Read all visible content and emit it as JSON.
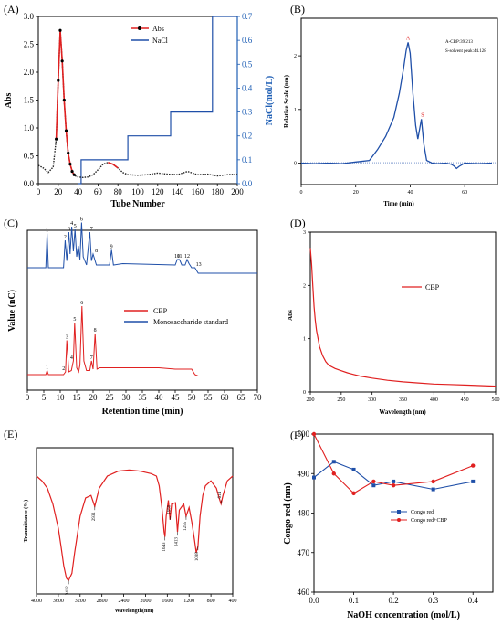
{
  "panels": {
    "A": {
      "label": "(A)"
    },
    "B": {
      "label": "(B)"
    },
    "C": {
      "label": "(C)"
    },
    "D": {
      "label": "(D)"
    },
    "E": {
      "label": "(E)"
    },
    "F": {
      "label": "(F)"
    }
  },
  "colors": {
    "red": "#e02020",
    "blue": "#1f4fa8",
    "axis_blue": "#1f5fb5"
  },
  "chart_data": [
    {
      "id": "A",
      "type": "line",
      "xlabel": "Tube Number",
      "ylabel": "Abs",
      "ylabel_right": "NaCl(mol/L)",
      "xlim": [
        0,
        200
      ],
      "ylim": [
        0,
        3.0
      ],
      "ylim_right": [
        0,
        0.7
      ],
      "xticks": [
        "0",
        "20",
        "40",
        "60",
        "80",
        "100",
        "120",
        "140",
        "160",
        "180",
        "200"
      ],
      "yticks": [
        "0.0",
        "0.5",
        "1.0",
        "1.5",
        "2.0",
        "2.5",
        "3.0"
      ],
      "yticks_right": [
        "0.0",
        "0.1",
        "0.2",
        "0.3",
        "0.4",
        "0.5",
        "0.6",
        "0.7"
      ],
      "series": [
        {
          "name": "Abs",
          "axis": "left",
          "x": [
            0,
            5,
            10,
            15,
            18,
            20,
            22,
            24,
            26,
            28,
            30,
            32,
            34,
            36,
            38,
            40,
            45,
            50,
            55,
            60,
            65,
            70,
            75,
            80,
            85,
            90,
            100,
            110,
            120,
            130,
            140,
            150,
            160,
            170,
            180,
            190,
            200
          ],
          "y": [
            0.33,
            0.28,
            0.2,
            0.3,
            0.8,
            1.85,
            2.75,
            2.2,
            1.5,
            0.95,
            0.55,
            0.35,
            0.22,
            0.16,
            0.13,
            0.12,
            0.11,
            0.12,
            0.16,
            0.25,
            0.35,
            0.38,
            0.35,
            0.28,
            0.2,
            0.16,
            0.15,
            0.16,
            0.19,
            0.17,
            0.16,
            0.22,
            0.16,
            0.17,
            0.14,
            0.16,
            0.17
          ]
        },
        {
          "name": "NaCl",
          "axis": "right",
          "x": [
            40,
            43,
            43,
            90,
            90,
            133,
            133,
            175,
            175,
            200
          ],
          "y": [
            0,
            0,
            0.1,
            0.1,
            0.2,
            0.2,
            0.3,
            0.3,
            0.7,
            0.7
          ]
        }
      ]
    },
    {
      "id": "B",
      "type": "line",
      "xlabel": "Time (min)",
      "ylabel": "Relative Scale (nm)",
      "xlim": [
        0,
        72
      ],
      "ylim": [
        -0.4,
        2.7
      ],
      "xticks": [
        "0",
        "20",
        "40",
        "60"
      ],
      "yticks": [
        "0",
        "1",
        "2"
      ],
      "annotations": [
        "A-CBP:39.213",
        "S-solvent peak:44.128"
      ],
      "peak_labels": [
        "A",
        "S"
      ],
      "series": [
        {
          "name": "",
          "x": [
            0,
            5,
            10,
            15,
            20,
            25,
            28,
            31,
            34,
            36,
            37.5,
            38.5,
            39.2,
            40,
            41,
            42,
            42.8,
            43.5,
            44.1,
            45,
            46,
            48,
            50,
            53,
            55,
            56,
            57,
            58,
            60,
            65,
            70
          ],
          "y": [
            0.0,
            -0.01,
            0.0,
            -0.01,
            0.02,
            0.05,
            0.25,
            0.5,
            0.85,
            1.3,
            1.75,
            2.1,
            2.25,
            2.05,
            1.3,
            0.7,
            0.45,
            0.65,
            0.82,
            0.35,
            0.05,
            0.0,
            -0.01,
            0.0,
            -0.02,
            -0.05,
            -0.1,
            -0.06,
            0.0,
            -0.01,
            0.0
          ]
        }
      ]
    },
    {
      "id": "C",
      "type": "line",
      "xlabel": "Retention time (min)",
      "ylabel": "Value (nC)",
      "xlim": [
        0,
        70
      ],
      "xticks": [
        "0",
        "5",
        "10",
        "15",
        "20",
        "25",
        "30",
        "35",
        "40",
        "45",
        "50",
        "55",
        "60",
        "65",
        "70"
      ],
      "legend": [
        "CBP",
        "Monosaccharide standard"
      ],
      "series": [
        {
          "name": "Monosaccharide standard",
          "baseline": 0.78,
          "x": [
            0,
            5.6,
            6,
            6.4,
            11,
            11.5,
            12,
            12.6,
            13,
            13.5,
            14,
            14.5,
            15,
            15.5,
            16,
            16.5,
            17,
            17.5,
            18,
            19,
            19.5,
            20,
            21,
            25,
            25.6,
            26.2,
            29,
            45,
            45.6,
            46.3,
            47,
            48,
            48.6,
            49.2,
            50,
            51,
            52,
            70
          ],
          "y": [
            0,
            0,
            0.25,
            0,
            0,
            0.2,
            0.05,
            0.26,
            0.1,
            0.3,
            0.12,
            0.28,
            0.08,
            0.16,
            0.06,
            0.33,
            0.08,
            0.05,
            0.02,
            0.26,
            0.05,
            0.1,
            0.02,
            0.02,
            0.13,
            0.02,
            0.03,
            0.02,
            0.06,
            0.06,
            0.02,
            0.02,
            0.06,
            0.03,
            0.0,
            0.0,
            -0.04,
            -0.04
          ],
          "peak_numbers": [
            "1",
            "2",
            "3",
            "4",
            "5",
            "6",
            "7",
            "8",
            "9",
            "10",
            "11",
            "12",
            "13"
          ]
        },
        {
          "name": "CBP",
          "baseline": 0.0,
          "x": [
            0,
            5.6,
            6,
            6.4,
            11,
            11.6,
            12,
            12.6,
            13.4,
            14,
            14.4,
            15,
            15.6,
            16,
            16.6,
            17.2,
            18,
            19,
            19.5,
            20,
            20.6,
            21.2,
            22,
            30,
            35,
            40,
            45,
            50,
            51,
            52,
            70
          ],
          "y": [
            0,
            0,
            0.03,
            0,
            0,
            0.02,
            0.25,
            0.02,
            0.03,
            0.1,
            0.38,
            0.05,
            0.02,
            0.07,
            0.5,
            0.1,
            0.03,
            0.03,
            0.1,
            0.04,
            0.3,
            0.04,
            0.05,
            0.05,
            0.05,
            0.05,
            0.04,
            0.04,
            0.0,
            -0.01,
            -0.01
          ],
          "peak_numbers": [
            "1",
            "2",
            "3",
            "4",
            "5",
            "6",
            "7",
            "8"
          ]
        }
      ]
    },
    {
      "id": "D",
      "type": "line",
      "xlabel": "Wavelength (nm)",
      "ylabel": "Abs",
      "xlim": [
        200,
        500
      ],
      "ylim": [
        0,
        3
      ],
      "xticks": [
        "200",
        "250",
        "300",
        "350",
        "400",
        "450",
        "500"
      ],
      "yticks": [
        "0",
        "1",
        "2",
        "3"
      ],
      "legend": [
        "CBP"
      ],
      "series": [
        {
          "name": "CBP",
          "x": [
            200,
            202,
            204,
            206,
            208,
            210,
            215,
            220,
            225,
            230,
            240,
            250,
            260,
            270,
            280,
            300,
            325,
            350,
            375,
            400,
            425,
            450,
            475,
            500
          ],
          "y": [
            2.7,
            2.4,
            2.0,
            1.6,
            1.35,
            1.15,
            0.85,
            0.68,
            0.57,
            0.5,
            0.44,
            0.4,
            0.36,
            0.33,
            0.3,
            0.26,
            0.22,
            0.19,
            0.17,
            0.15,
            0.14,
            0.13,
            0.12,
            0.11
          ]
        }
      ]
    },
    {
      "id": "E",
      "type": "line",
      "xlabel": "Wavelength(nm)",
      "ylabel": "Tranmittance (%)",
      "xlim": [
        4000,
        400
      ],
      "ylim": [
        0,
        1
      ],
      "xticks": [
        "4000",
        "3600",
        "3200",
        "2800",
        "2400",
        "2000",
        "1600",
        "1200",
        "800",
        "400"
      ],
      "peaks": [
        "3412",
        "2931",
        "1643",
        "1550",
        "1413",
        "1255",
        "1038",
        "614"
      ],
      "series": [
        {
          "name": "",
          "x": [
            4000,
            3900,
            3800,
            3700,
            3600,
            3550,
            3500,
            3450,
            3412,
            3350,
            3300,
            3200,
            3100,
            3000,
            2931,
            2850,
            2700,
            2500,
            2300,
            2100,
            1900,
            1800,
            1750,
            1700,
            1660,
            1643,
            1620,
            1580,
            1550,
            1520,
            1450,
            1413,
            1380,
            1300,
            1255,
            1200,
            1150,
            1100,
            1070,
            1038,
            1000,
            950,
            900,
            800,
            700,
            650,
            614,
            580,
            500,
            400
          ],
          "y": [
            0.88,
            0.84,
            0.78,
            0.65,
            0.45,
            0.3,
            0.14,
            0.04,
            0.02,
            0.08,
            0.25,
            0.55,
            0.7,
            0.72,
            0.63,
            0.78,
            0.88,
            0.92,
            0.93,
            0.92,
            0.9,
            0.88,
            0.8,
            0.62,
            0.42,
            0.38,
            0.55,
            0.68,
            0.52,
            0.65,
            0.66,
            0.42,
            0.6,
            0.65,
            0.55,
            0.62,
            0.5,
            0.35,
            0.25,
            0.3,
            0.55,
            0.72,
            0.8,
            0.84,
            0.78,
            0.7,
            0.65,
            0.72,
            0.84,
            0.88
          ]
        }
      ]
    },
    {
      "id": "F",
      "type": "line",
      "xlabel": "NaOH concentration (mol/L)",
      "ylabel": "Congo red (nm)",
      "xlim": [
        0.0,
        0.45
      ],
      "ylim": [
        460,
        500
      ],
      "xticks": [
        "0.0",
        "0.1",
        "0.2",
        "0.3",
        "0.4"
      ],
      "yticks": [
        "460",
        "470",
        "480",
        "490",
        "500"
      ],
      "legend": [
        "Congo red",
        "Congo red+CBP"
      ],
      "series": [
        {
          "name": "Congo red",
          "x": [
            0.0,
            0.05,
            0.1,
            0.15,
            0.2,
            0.3,
            0.4
          ],
          "y": [
            489,
            493,
            491,
            487,
            488,
            486,
            488
          ]
        },
        {
          "name": "Congo red+CBP",
          "x": [
            0.0,
            0.05,
            0.1,
            0.15,
            0.2,
            0.3,
            0.4
          ],
          "y": [
            500,
            490,
            485,
            488,
            487,
            488,
            492
          ]
        }
      ]
    }
  ]
}
